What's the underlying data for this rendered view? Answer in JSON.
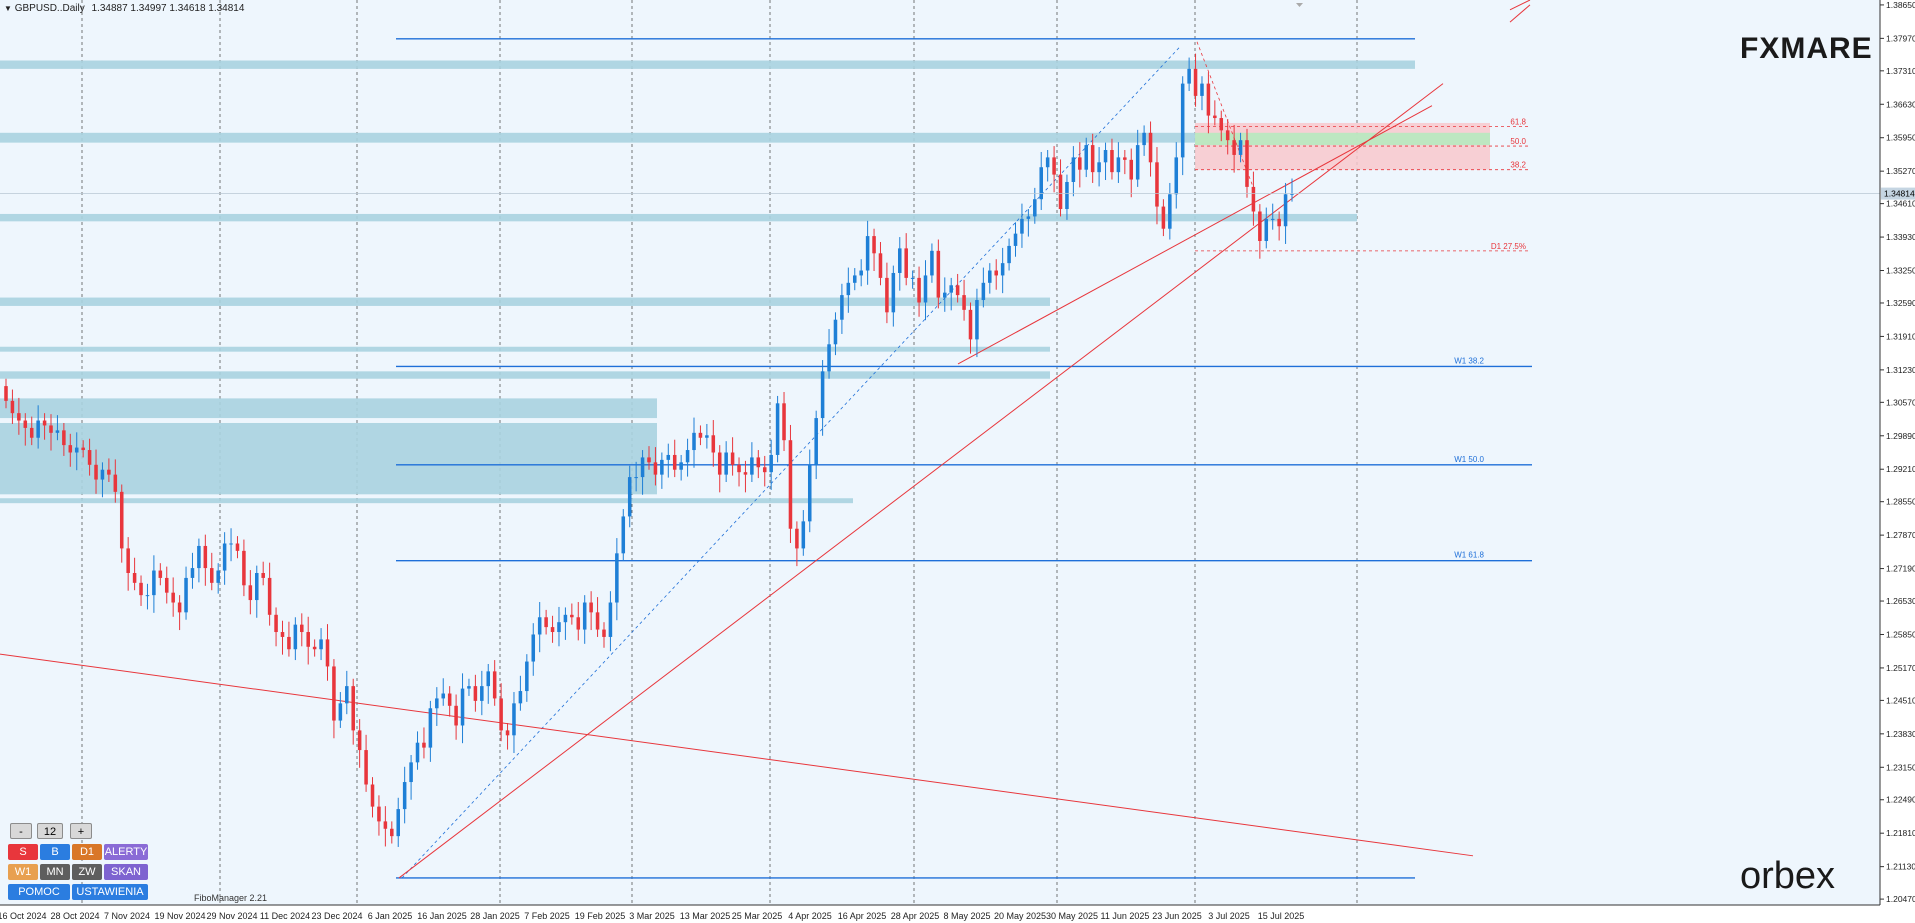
{
  "header": {
    "symbol": "GBPUSD..Daily",
    "ohlc": "1.34887 1.34997 1.34618 1.34814"
  },
  "watermark": {
    "brand_top": "FXMARE",
    "brand_bottom": "orbex"
  },
  "footer_note": "FiboManager 2.21",
  "controls": {
    "minus": "-",
    "value": "12",
    "plus": "+",
    "row1": [
      "S",
      "B",
      "D1",
      "ALERTY"
    ],
    "row2": [
      "W1",
      "MN",
      "ZW",
      "SKAN"
    ],
    "row3": [
      "POMOC",
      "USTAWIENIA"
    ]
  },
  "chart_data": {
    "type": "candlestick",
    "symbol": "GBPUSD",
    "timeframe": "Daily",
    "ylim": [
      1.2035,
      1.3875
    ],
    "y_ticks": [
      "1.38650",
      "1.37970",
      "1.37310",
      "1.36630",
      "1.35950",
      "1.35270",
      "1.34610",
      "1.33930",
      "1.33250",
      "1.32590",
      "1.31910",
      "1.31230",
      "1.30570",
      "1.29890",
      "1.29210",
      "1.28550",
      "1.27870",
      "1.27190",
      "1.26530",
      "1.25850",
      "1.25170",
      "1.24510",
      "1.23830",
      "1.23150",
      "1.22490",
      "1.21810",
      "1.21130",
      "1.20470"
    ],
    "x_labels": [
      "16 Oct 2024",
      "28 Oct 2024",
      "7 Nov 2024",
      "19 Nov 2024",
      "29 Nov 2024",
      "11 Dec 2024",
      "23 Dec 2024",
      "6 Jan 2025",
      "16 Jan 2025",
      "28 Jan 2025",
      "7 Feb 2025",
      "19 Feb 2025",
      "3 Mar 2025",
      "13 Mar 2025",
      "25 Mar 2025",
      "4 Apr 2025",
      "16 Apr 2025",
      "28 Apr 2025",
      "8 May 2025",
      "20 May 2025",
      "30 May 2025",
      "11 Jun 2025",
      "23 Jun 2025",
      "3 Jul 2025",
      "15 Jul 2025"
    ],
    "current_price": "1.34814",
    "closes": [
      1.306,
      1.3035,
      1.302,
      1.3005,
      1.2985,
      1.302,
      1.301,
      1.2995,
      1.3,
      1.297,
      1.2955,
      1.2965,
      1.296,
      1.293,
      1.29,
      1.292,
      1.291,
      1.2875,
      1.276,
      1.271,
      1.269,
      1.2665,
      1.2665,
      1.2715,
      1.27,
      1.267,
      1.265,
      1.263,
      1.27,
      1.272,
      1.2765,
      1.272,
      1.269,
      1.2715,
      1.277,
      1.277,
      1.2755,
      1.2685,
      1.2655,
      1.271,
      1.27,
      1.2625,
      1.259,
      1.258,
      1.2555,
      1.2605,
      1.259,
      1.256,
      1.2555,
      1.2575,
      1.252,
      1.241,
      1.2445,
      1.248,
      1.239,
      1.235,
      1.228,
      1.2235,
      1.2205,
      1.219,
      1.2175,
      1.223,
      1.2285,
      1.2325,
      1.2365,
      1.2355,
      1.2435,
      1.2455,
      1.2465,
      1.244,
      1.24,
      1.2475,
      1.248,
      1.245,
      1.248,
      1.251,
      1.2455,
      1.239,
      1.238,
      1.2445,
      1.247,
      1.253,
      1.2585,
      1.262,
      1.26,
      1.259,
      1.261,
      1.2625,
      1.262,
      1.2595,
      1.265,
      1.263,
      1.2595,
      1.258,
      1.265,
      1.275,
      1.2825,
      1.2905,
      1.2905,
      1.2945,
      1.2935,
      1.291,
      1.294,
      1.295,
      1.292,
      1.2935,
      1.296,
      1.2995,
      1.2985,
      1.299,
      1.2955,
      1.291,
      1.2955,
      1.293,
      1.2915,
      1.291,
      1.2945,
      1.2925,
      1.2915,
      1.295,
      1.3055,
      1.298,
      1.28,
      1.276,
      1.2815,
      1.293,
      1.3025,
      1.312,
      1.3175,
      1.3225,
      1.3275,
      1.33,
      1.3315,
      1.3325,
      1.3395,
      1.336,
      1.331,
      1.324,
      1.332,
      1.337,
      1.331,
      1.331,
      1.326,
      1.3315,
      1.3365,
      1.327,
      1.328,
      1.3295,
      1.3275,
      1.3245,
      1.3185,
      1.3265,
      1.33,
      1.3325,
      1.3315,
      1.334,
      1.3375,
      1.34,
      1.343,
      1.3435,
      1.347,
      1.3535,
      1.3555,
      1.352,
      1.345,
      1.3505,
      1.3555,
      1.353,
      1.358,
      1.3525,
      1.3545,
      1.357,
      1.3525,
      1.3555,
      1.355,
      1.351,
      1.358,
      1.3605,
      1.3545,
      1.3455,
      1.341,
      1.348,
      1.3555,
      1.3705,
      1.3735,
      1.368,
      1.3705,
      1.364,
      1.3635,
      1.361,
      1.359,
      1.356,
      1.359,
      1.3495,
      1.3445,
      1.3385,
      1.343,
      1.343,
      1.3415,
      1.348,
      1.3481
    ],
    "levels": [
      {
        "label": "",
        "value": 1.3796
      },
      {
        "label": "W1 38.2",
        "value": 1.313
      },
      {
        "label": "W1 50.0",
        "value": 1.293
      },
      {
        "label": "W1 61.8",
        "value": 1.2735
      },
      {
        "label": "",
        "value": 1.209
      }
    ],
    "fib_d1": [
      {
        "label": "61.8",
        "value": 1.3618
      },
      {
        "label": "50.0",
        "value": 1.3578
      },
      {
        "label": "38.2",
        "value": 1.353
      },
      {
        "label": "D1 27.5%",
        "value": 1.3365
      }
    ],
    "zones": [
      {
        "y_top": 1.3752,
        "y_bottom": 1.3735
      },
      {
        "y_top": 1.3605,
        "y_bottom": 1.3585
      },
      {
        "y_top": 1.344,
        "y_bottom": 1.3425
      },
      {
        "y_top": 1.327,
        "y_bottom": 1.3253
      },
      {
        "y_top": 1.317,
        "y_bottom": 1.316
      },
      {
        "y_top": 1.312,
        "y_bottom": 1.3105
      },
      {
        "y_top": 1.3065,
        "y_bottom": 1.3025
      },
      {
        "y_top": 1.3015,
        "y_bottom": 1.287
      },
      {
        "y_top": 1.2862,
        "y_bottom": 1.2852
      }
    ],
    "target_zone": {
      "green": [
        1.3605,
        1.358
      ],
      "red": [
        1.3625,
        1.353
      ]
    },
    "colors": {
      "bull": "#1e7fd6",
      "bear": "#e8363c",
      "zone": "#a9d3e0",
      "level": "#1e6fd8",
      "trend": "#e8363c",
      "bg": "#eef6fd"
    }
  }
}
